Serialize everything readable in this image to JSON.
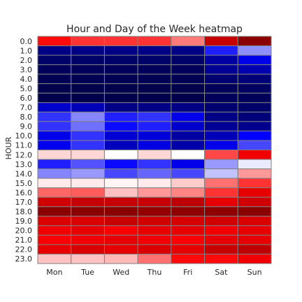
{
  "chart_data": {
    "type": "heatmap",
    "title": "Hour and Day of the Week heatmap",
    "xlabel": "",
    "ylabel": "HOUR",
    "categories": [
      "Mon",
      "Tue",
      "Wed",
      "Thu",
      "Fri",
      "Sat",
      "Sun"
    ],
    "y_categories": [
      "0.0",
      "1.0",
      "2.0",
      "3.0",
      "4.0",
      "5.0",
      "6.0",
      "7.0",
      "8.0",
      "9.0",
      "10.0",
      "11.0",
      "12.0",
      "13.0",
      "14.0",
      "15.0",
      "16.0",
      "17.0",
      "18.0",
      "19.0",
      "20.0",
      "21.0",
      "22.0",
      "23.0"
    ],
    "colormap": "seismic",
    "value_range": [
      0,
      1
    ],
    "colorbar": false,
    "grid_line_color": "#808080",
    "values": [
      [
        0.74,
        0.7,
        0.7,
        0.7,
        0.63,
        0.86,
        0.98
      ],
      [
        0.08,
        0.08,
        0.08,
        0.08,
        0.08,
        0.28,
        0.39
      ],
      [
        0.04,
        0.04,
        0.04,
        0.04,
        0.04,
        0.12,
        0.22
      ],
      [
        0.02,
        0.02,
        0.02,
        0.02,
        0.02,
        0.1,
        0.14
      ],
      [
        0.01,
        0.01,
        0.01,
        0.01,
        0.01,
        0.05,
        0.06
      ],
      [
        0.0,
        0.0,
        0.0,
        0.0,
        0.0,
        0.02,
        0.03
      ],
      [
        0.0,
        0.0,
        0.0,
        0.0,
        0.0,
        0.02,
        0.02
      ],
      [
        0.18,
        0.15,
        0.08,
        0.08,
        0.08,
        0.05,
        0.04
      ],
      [
        0.3,
        0.38,
        0.28,
        0.3,
        0.22,
        0.08,
        0.06
      ],
      [
        0.3,
        0.36,
        0.26,
        0.28,
        0.18,
        0.1,
        0.09
      ],
      [
        0.22,
        0.3,
        0.19,
        0.2,
        0.12,
        0.15,
        0.25
      ],
      [
        0.23,
        0.3,
        0.16,
        0.21,
        0.13,
        0.22,
        0.32
      ],
      [
        0.54,
        0.54,
        0.5,
        0.54,
        0.5,
        0.68,
        0.78
      ],
      [
        0.28,
        0.33,
        0.26,
        0.3,
        0.22,
        0.4,
        0.48
      ],
      [
        0.38,
        0.4,
        0.32,
        0.35,
        0.32,
        0.44,
        0.6
      ],
      [
        0.52,
        0.52,
        0.51,
        0.52,
        0.55,
        0.64,
        0.7
      ],
      [
        0.65,
        0.66,
        0.56,
        0.6,
        0.62,
        0.7,
        0.8
      ],
      [
        0.84,
        0.86,
        0.86,
        0.86,
        0.88,
        0.8,
        0.84
      ],
      [
        0.98,
        0.98,
        0.98,
        0.96,
        0.97,
        0.97,
        0.98
      ],
      [
        0.82,
        0.82,
        0.86,
        0.84,
        0.83,
        0.84,
        0.82
      ],
      [
        0.78,
        0.8,
        0.76,
        0.8,
        0.8,
        0.78,
        0.8
      ],
      [
        0.76,
        0.78,
        0.8,
        0.78,
        0.76,
        0.8,
        0.8
      ],
      [
        0.8,
        0.82,
        0.8,
        0.82,
        0.8,
        0.86,
        0.88
      ],
      [
        0.56,
        0.56,
        0.57,
        0.64,
        0.74,
        0.74,
        0.78
      ]
    ]
  }
}
